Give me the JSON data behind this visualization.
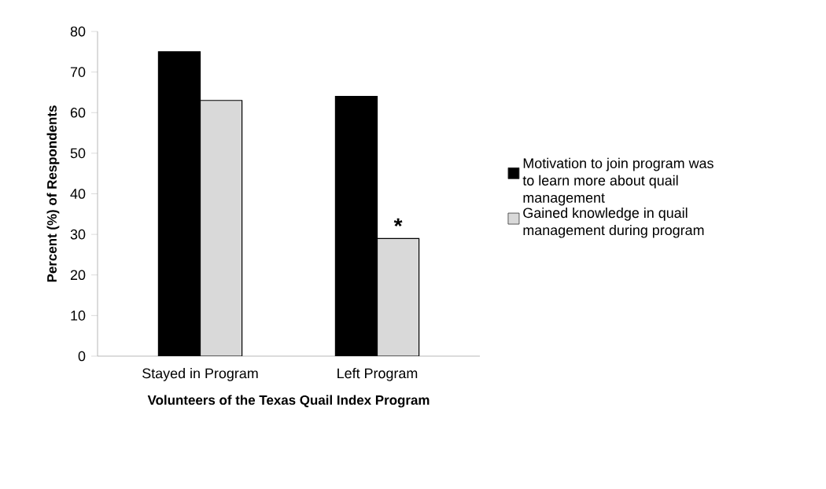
{
  "chart_data": {
    "type": "bar",
    "xlabel": "Volunteers of the Texas Quail Index Program",
    "ylabel": "Percent (%) of Respondents",
    "categories": [
      "Stayed in Program",
      "Left Program"
    ],
    "series": [
      {
        "name": "Motivation to join program was to learn more about quail management",
        "color": "#000000",
        "values": [
          75,
          64
        ]
      },
      {
        "name": "Gained knowledge in quail management during program",
        "color": "#d9d9d9",
        "values": [
          63,
          29
        ]
      }
    ],
    "ylim": [
      0,
      80
    ],
    "yticks": [
      0,
      10,
      20,
      30,
      40,
      50,
      60,
      70,
      80
    ],
    "annotations": [
      {
        "text": "*",
        "x": "Left Program",
        "y": 29
      }
    ],
    "legend": "right",
    "grid": false
  }
}
